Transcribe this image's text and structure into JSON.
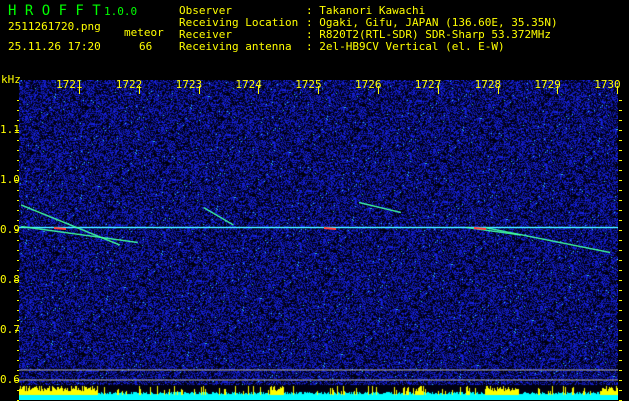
{
  "header": {
    "app_name": "H R O F F T",
    "version": "1.0.0",
    "filename": "2511261720.png",
    "timestamp": "25.11.26 17:20",
    "meteor_label": "meteor",
    "meteor_count": "66",
    "info": [
      {
        "key": "Observer",
        "value": ": Takanori Kawachi"
      },
      {
        "key": "Receiving Location",
        "value": ": Ogaki, Gifu, JAPAN (136.60E, 35.35N)"
      },
      {
        "key": "Receiver",
        "value": ": R820T2(RTL-SDR) SDR-Sharp 53.372MHz"
      },
      {
        "key": "Receiving antenna",
        "value": ": 2el-HB9CV Vertical (el. E-W)"
      }
    ]
  },
  "chart_data": {
    "type": "heatmap",
    "ylabel": "kHz",
    "y_ticks": [
      "1.1",
      "1.0",
      "0.9",
      "0.8",
      "0.7",
      "0.6"
    ],
    "ylim": [
      0.56,
      1.2
    ],
    "x_ticks": [
      "1721",
      "1722",
      "1723",
      "1724",
      "1725",
      "1726",
      "1727",
      "1728",
      "1729",
      "1730"
    ],
    "xlim": [
      1720.2,
      1730.2
    ],
    "carrier_khz": 0.905,
    "reference_lines_khz": [
      0.62,
      0.6
    ],
    "traces": [
      {
        "t0": 1720.25,
        "f0": 0.95,
        "t1": 1721.9,
        "f1": 0.87
      },
      {
        "t0": 1720.25,
        "f0": 0.907,
        "t1": 1722.2,
        "f1": 0.875
      },
      {
        "t0": 1723.3,
        "f0": 0.945,
        "t1": 1723.8,
        "f1": 0.91
      },
      {
        "t0": 1725.9,
        "f0": 0.955,
        "t1": 1726.6,
        "f1": 0.935
      },
      {
        "t0": 1728.0,
        "f0": 0.905,
        "t1": 1730.1,
        "f1": 0.855
      },
      {
        "t0": 1727.7,
        "f0": 0.905,
        "t1": 1728.6,
        "f1": 0.89
      }
    ],
    "colors": {
      "background": "#000000",
      "noise": "#1a28c8",
      "carrier": "#40e0ff",
      "text": "#ffff00",
      "title": "#00ff00",
      "level_high": "#ffff00",
      "level_low": "#00ffff"
    }
  }
}
